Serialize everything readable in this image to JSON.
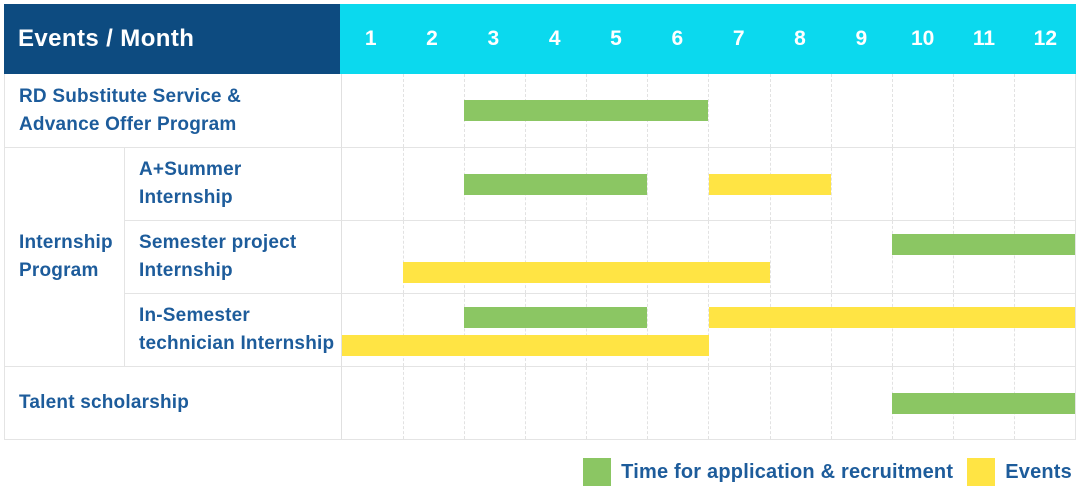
{
  "colors": {
    "application": "#8bc663",
    "events": "#ffe444",
    "header_bg": "#0d4b80",
    "months_bg": "#0bd9ee",
    "label_text": "#1d5c9b",
    "grid_line": "#e4e4e4",
    "background": "#ffffff"
  },
  "chart_data": {
    "type": "gantt",
    "title": "Events / Month",
    "x_unit": "month",
    "month_range": [
      1,
      12
    ],
    "months": [
      "1",
      "2",
      "3",
      "4",
      "5",
      "6",
      "7",
      "8",
      "9",
      "10",
      "11",
      "12"
    ],
    "grid": true,
    "legend_position": "bottom-right",
    "legend": [
      {
        "series": "application",
        "label": "Time for application & recruitment",
        "color": "#8bc663"
      },
      {
        "series": "events",
        "label": "Events",
        "color": "#ffe444"
      }
    ],
    "group_label": "Internship Program",
    "group_label_lines": [
      "Internship",
      "Program"
    ],
    "rows": [
      {
        "group": "",
        "label": "RD Substitute Service & Advance Offer Program",
        "label_lines": [
          "RD Substitute Service &",
          "Advance Offer Program"
        ],
        "bars": [
          {
            "series": "application",
            "start_month": 3,
            "end_month": 6,
            "lane": "center"
          }
        ]
      },
      {
        "group": "Internship Program",
        "label": "A+Summer Internship",
        "label_lines": [
          "A+Summer",
          "Internship"
        ],
        "bars": [
          {
            "series": "application",
            "start_month": 3,
            "end_month": 5,
            "lane": "center"
          },
          {
            "series": "events",
            "start_month": 7,
            "end_month": 8,
            "lane": "center"
          }
        ]
      },
      {
        "group": "Internship Program",
        "label": "Semester project Internship",
        "label_lines": [
          "Semester project",
          "Internship"
        ],
        "bars": [
          {
            "series": "application",
            "start_month": 10,
            "end_month": 12,
            "lane": "top"
          },
          {
            "series": "events",
            "start_month": 2,
            "end_month": 7,
            "lane": "bottom"
          }
        ]
      },
      {
        "group": "Internship Program",
        "label": "In-Semester technician Internship",
        "label_lines": [
          "In-Semester",
          "technician Internship"
        ],
        "bars": [
          {
            "series": "application",
            "start_month": 3,
            "end_month": 5,
            "lane": "top"
          },
          {
            "series": "events",
            "start_month": 7,
            "end_month": 12,
            "lane": "top"
          },
          {
            "series": "events",
            "start_month": 1,
            "end_month": 6,
            "lane": "bottom"
          }
        ]
      },
      {
        "group": "",
        "label": "Talent scholarship",
        "label_lines": [
          "Talent scholarship"
        ],
        "bars": [
          {
            "series": "application",
            "start_month": 10,
            "end_month": 12,
            "lane": "center"
          }
        ]
      }
    ]
  }
}
